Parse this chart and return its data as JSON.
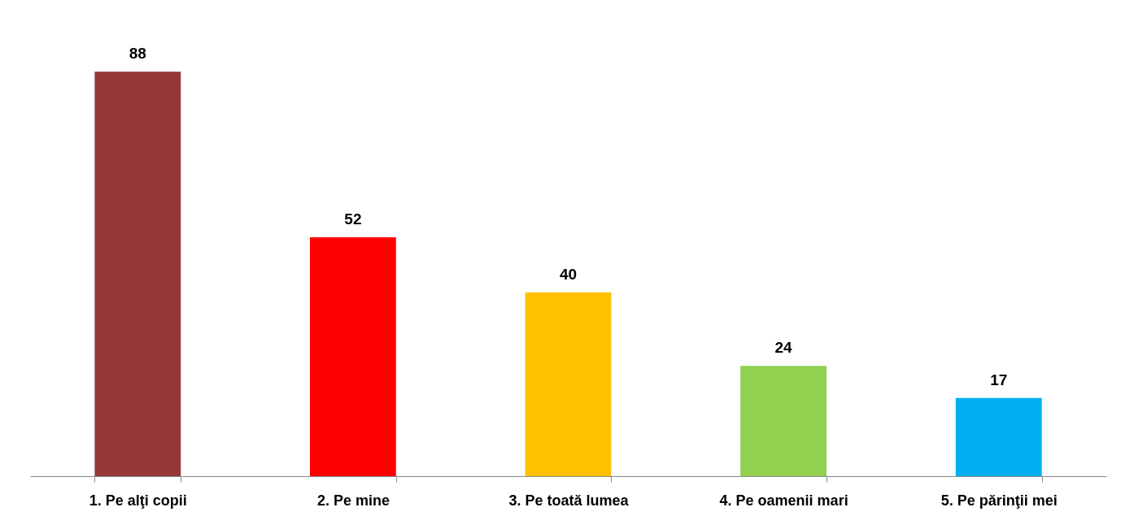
{
  "chart_data": {
    "type": "bar",
    "categories": [
      "1. Pe alţi copii",
      "2. Pe mine",
      "3. Pe toată lumea",
      "4. Pe oamenii mari",
      "5. Pe părinţii mei"
    ],
    "values": [
      88,
      52,
      40,
      24,
      17
    ],
    "colors": [
      "#953735",
      "#ff0000",
      "#ffc000",
      "#92d050",
      "#00b0f0"
    ],
    "data_labels": true
  }
}
